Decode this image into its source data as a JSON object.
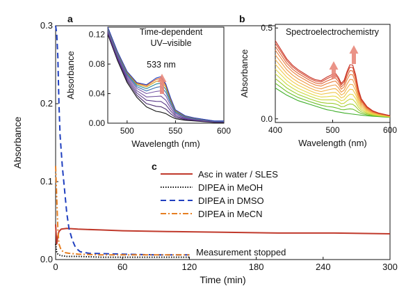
{
  "chart_data": [
    {
      "panel": "c",
      "type": "line",
      "xlabel": "Time (min)",
      "ylabel": "Absorbance",
      "xlim": [
        0,
        300
      ],
      "ylim": [
        0,
        0.3
      ],
      "xticks": [
        0,
        60,
        120,
        180,
        240,
        300
      ],
      "yticks": [
        0.0,
        0.1,
        0.2,
        0.3
      ],
      "ytick_labels": [
        "0.0",
        "0.1",
        "0.2",
        "0.3"
      ],
      "legend_position": "center-right",
      "annotation": "Measurement stopped",
      "series": [
        {
          "name": "Asc in water / SLES",
          "color": "#c0392b",
          "style": "solid",
          "x": [
            0,
            1,
            2,
            3,
            5,
            10,
            20,
            40,
            60,
            100,
            150,
            200,
            250,
            300
          ],
          "y": [
            0.045,
            0.02,
            0.03,
            0.036,
            0.039,
            0.04,
            0.039,
            0.038,
            0.037,
            0.036,
            0.035,
            0.034,
            0.034,
            0.033
          ]
        },
        {
          "name": "DIPEA in MeOH",
          "color": "#111111",
          "style": "dotted",
          "x": [
            0,
            1,
            2,
            3,
            5,
            10,
            20,
            40,
            60,
            90,
            120
          ],
          "y": [
            0.02,
            0.01,
            0.007,
            0.006,
            0.005,
            0.004,
            0.004,
            0.003,
            0.003,
            0.003,
            0.003
          ]
        },
        {
          "name": "DIPEA in DMSO",
          "color": "#1f3fbf",
          "style": "dashed",
          "x": [
            0,
            1,
            2,
            3,
            4,
            6,
            8,
            10,
            12,
            15,
            18,
            22,
            30,
            60,
            90,
            120
          ],
          "y": [
            0.3,
            0.29,
            0.26,
            0.2,
            0.16,
            0.12,
            0.09,
            0.06,
            0.04,
            0.025,
            0.015,
            0.01,
            0.008,
            0.007,
            0.006,
            0.006
          ]
        },
        {
          "name": "DIPEA in MeCN",
          "color": "#e67e22",
          "style": "dashdot",
          "x": [
            0,
            1,
            2,
            3,
            5,
            8,
            12,
            20,
            40,
            60,
            90,
            120
          ],
          "y": [
            0.12,
            0.08,
            0.04,
            0.02,
            0.012,
            0.009,
            0.008,
            0.007,
            0.006,
            0.006,
            0.006,
            0.006
          ]
        }
      ]
    },
    {
      "panel": "a",
      "type": "line",
      "title": "Time-dependent UV–visible",
      "title_lines": [
        "Time-dependent",
        "UV–visible"
      ],
      "xlabel": "Wavelength (nm)",
      "ylabel": "Absorbance",
      "xlim": [
        480,
        600
      ],
      "ylim": [
        0,
        0.13
      ],
      "xticks": [
        500,
        550,
        600
      ],
      "yticks": [
        0.0,
        0.04,
        0.08,
        0.12
      ],
      "ytick_labels": [
        "0.00",
        "0.04",
        "0.08",
        "0.12"
      ],
      "annotation": "533 nm",
      "x": [
        480,
        490,
        500,
        510,
        520,
        530,
        535,
        540,
        545,
        550,
        560,
        570,
        580,
        590,
        600
      ],
      "baseline": [
        0.12,
        0.085,
        0.055,
        0.035,
        0.022,
        0.016,
        0.015,
        0.013,
        0.009,
        0.006,
        0.004,
        0.003,
        0.002,
        0.001,
        0.001
      ],
      "peak_gain": [
        0.01,
        0.012,
        0.015,
        0.02,
        0.03,
        0.045,
        0.048,
        0.04,
        0.025,
        0.012,
        0.006,
        0.004,
        0.003,
        0.002,
        0.002
      ],
      "series": [
        {
          "color": "#111111",
          "level": 0.0
        },
        {
          "color": "#4a2c6e",
          "level": 0.15
        },
        {
          "color": "#5b3a8a",
          "level": 0.3
        },
        {
          "color": "#6b4a9a",
          "level": 0.45
        },
        {
          "color": "#7a5aa8",
          "level": 0.6
        },
        {
          "color": "#3e6fb0",
          "level": 0.72
        },
        {
          "color": "#2a8a9a",
          "level": 0.82
        },
        {
          "color": "#d4a017",
          "level": 0.9
        },
        {
          "color": "#e0601c",
          "level": 0.96
        },
        {
          "color": "#1f3fbf",
          "level": 1.0
        }
      ]
    },
    {
      "panel": "b",
      "type": "line",
      "title": "Spectroelectrochemistry",
      "xlabel": "Wavelength (nm)",
      "ylabel": "Absorbance",
      "xlim": [
        400,
        600
      ],
      "ylim": [
        -0.02,
        0.52
      ],
      "xticks": [
        400,
        500,
        600
      ],
      "yticks": [
        0.0,
        0.5
      ],
      "ytick_labels": [
        "0.0",
        "0.5"
      ],
      "x": [
        400,
        410,
        420,
        430,
        440,
        450,
        460,
        470,
        480,
        490,
        500,
        505,
        510,
        515,
        520,
        525,
        530,
        535,
        540,
        545,
        550,
        560,
        570,
        580,
        590,
        600
      ],
      "base": [
        0.17,
        0.15,
        0.13,
        0.115,
        0.1,
        0.09,
        0.08,
        0.07,
        0.06,
        0.05,
        0.045,
        0.04,
        0.038,
        0.035,
        0.032,
        0.03,
        0.028,
        0.026,
        0.024,
        0.022,
        0.02,
        0.017,
        0.014,
        0.012,
        0.01,
        0.008
      ],
      "gain": [
        0.26,
        0.23,
        0.2,
        0.18,
        0.17,
        0.16,
        0.15,
        0.145,
        0.15,
        0.18,
        0.2,
        0.21,
        0.19,
        0.16,
        0.18,
        0.23,
        0.27,
        0.27,
        0.22,
        0.14,
        0.09,
        0.05,
        0.03,
        0.02,
        0.015,
        0.01
      ],
      "series": [
        {
          "color": "#3fae2a",
          "level": 0.0
        },
        {
          "color": "#6cbf2a",
          "level": 0.1
        },
        {
          "color": "#9ccc2e",
          "level": 0.2
        },
        {
          "color": "#c8d63a",
          "level": 0.3
        },
        {
          "color": "#e6d94a",
          "level": 0.4
        },
        {
          "color": "#f0c84a",
          "level": 0.5
        },
        {
          "color": "#f2b24a",
          "level": 0.6
        },
        {
          "color": "#ef9a45",
          "level": 0.7
        },
        {
          "color": "#e9803e",
          "level": 0.8
        },
        {
          "color": "#e06436",
          "level": 0.88
        },
        {
          "color": "#d4462c",
          "level": 0.95
        },
        {
          "color": "#c62f22",
          "level": 1.0
        }
      ]
    }
  ],
  "labels": {
    "a": "a",
    "b": "b",
    "c": "c"
  },
  "colors": {
    "arrow": "#e8877a"
  }
}
